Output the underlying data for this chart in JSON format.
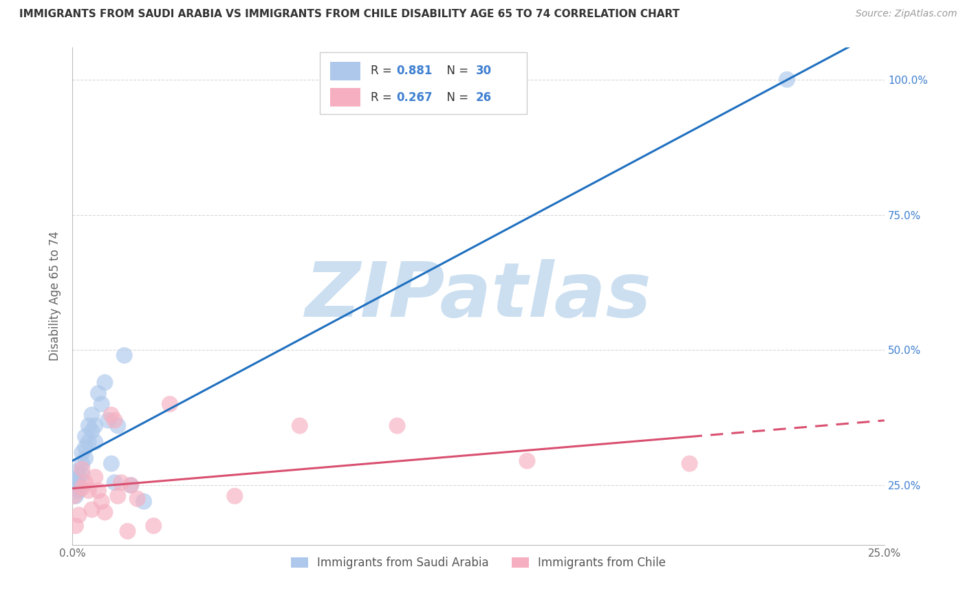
{
  "title": "IMMIGRANTS FROM SAUDI ARABIA VS IMMIGRANTS FROM CHILE DISABILITY AGE 65 TO 74 CORRELATION CHART",
  "source": "Source: ZipAtlas.com",
  "ylabel": "Disability Age 65 to 74",
  "legend_label1": "Immigrants from Saudi Arabia",
  "legend_label2": "Immigrants from Chile",
  "R1": "0.881",
  "N1": "30",
  "R2": "0.267",
  "N2": "26",
  "color1": "#adc8eb",
  "color2": "#f5afc0",
  "line_color1": "#2070c0",
  "line_color2": "#d95070",
  "right_tick_color": "#4080d0",
  "xlim": [
    0.0,
    0.25
  ],
  "ylim": [
    0.14,
    1.06
  ],
  "xtick_positions": [
    0.0,
    0.05,
    0.1,
    0.15,
    0.2,
    0.25
  ],
  "xtick_labels": [
    "0.0%",
    "",
    "",
    "",
    "",
    "25.0%"
  ],
  "ytick_positions": [
    0.25,
    0.5,
    0.75,
    1.0
  ],
  "ytick_labels_right": [
    "25.0%",
    "50.0%",
    "75.0%",
    "100.0%"
  ],
  "saudi_x": [
    0.0005,
    0.001,
    0.001,
    0.0015,
    0.002,
    0.002,
    0.002,
    0.003,
    0.003,
    0.003,
    0.004,
    0.004,
    0.004,
    0.005,
    0.005,
    0.006,
    0.006,
    0.007,
    0.007,
    0.008,
    0.009,
    0.01,
    0.011,
    0.012,
    0.013,
    0.014,
    0.016,
    0.018,
    0.022,
    0.22
  ],
  "saudi_y": [
    0.245,
    0.23,
    0.26,
    0.275,
    0.24,
    0.25,
    0.265,
    0.29,
    0.31,
    0.27,
    0.32,
    0.34,
    0.3,
    0.33,
    0.36,
    0.35,
    0.38,
    0.33,
    0.36,
    0.42,
    0.4,
    0.44,
    0.37,
    0.29,
    0.255,
    0.36,
    0.49,
    0.25,
    0.22,
    1.0
  ],
  "chile_x": [
    0.0005,
    0.001,
    0.002,
    0.003,
    0.003,
    0.004,
    0.005,
    0.006,
    0.007,
    0.008,
    0.009,
    0.01,
    0.012,
    0.013,
    0.014,
    0.015,
    0.017,
    0.018,
    0.02,
    0.025,
    0.03,
    0.05,
    0.07,
    0.1,
    0.14,
    0.19
  ],
  "chile_y": [
    0.23,
    0.175,
    0.195,
    0.245,
    0.28,
    0.255,
    0.24,
    0.205,
    0.265,
    0.24,
    0.22,
    0.2,
    0.38,
    0.37,
    0.23,
    0.255,
    0.165,
    0.25,
    0.225,
    0.175,
    0.4,
    0.23,
    0.36,
    0.36,
    0.295,
    0.29
  ],
  "watermark": "ZIPatlas",
  "watermark_color": "#ccdff0",
  "background_color": "#ffffff",
  "grid_color": "#d8d8d8",
  "title_fontsize": 11,
  "source_fontsize": 10,
  "tick_fontsize": 11,
  "ylabel_fontsize": 12,
  "scatter_size": 300,
  "scatter_alpha": 0.65,
  "line_width": 2.2
}
